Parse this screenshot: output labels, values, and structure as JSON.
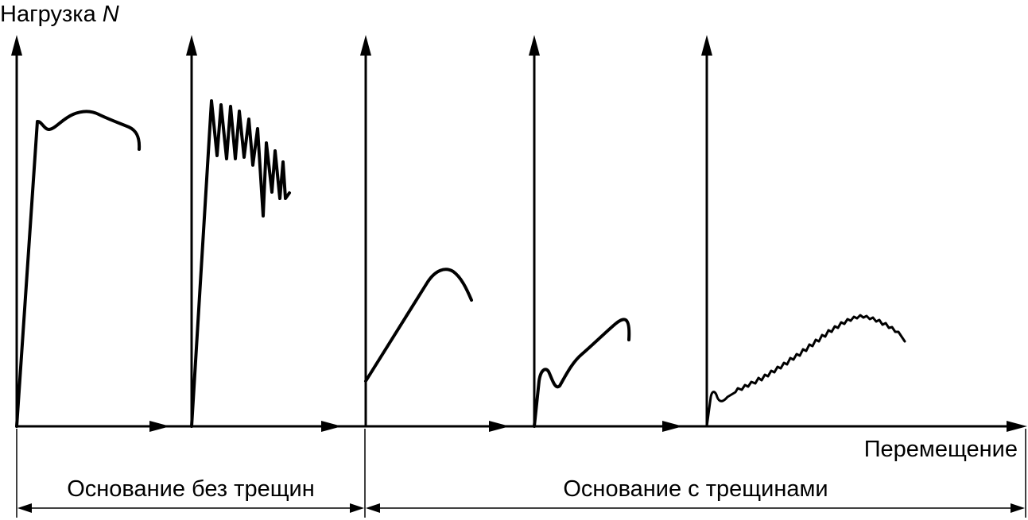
{
  "y_axis_label": {
    "text": "Нагрузка ",
    "symbol": "N"
  },
  "x_axis_label": "Перемещение",
  "groups": [
    {
      "label": "Основание без трещин"
    },
    {
      "label": "Основание с трещинами"
    }
  ],
  "curves": [
    {
      "name": "curve-uncracked-smooth",
      "shape": "steep rise, plateau, slight drop"
    },
    {
      "name": "curve-uncracked-sawtooth",
      "shape": "steep rise, oscillating drop"
    },
    {
      "name": "curve-cracked-linear-peak",
      "shape": "offset linear rise, rounded peak, drop"
    },
    {
      "name": "curve-cracked-dip-rise",
      "shape": "small early peak, dip, rising"
    },
    {
      "name": "curve-cracked-wavy",
      "shape": "small early peak, wavy gradual rise, drop"
    }
  ],
  "colors": {
    "ink": "#000000",
    "background": "#ffffff"
  }
}
